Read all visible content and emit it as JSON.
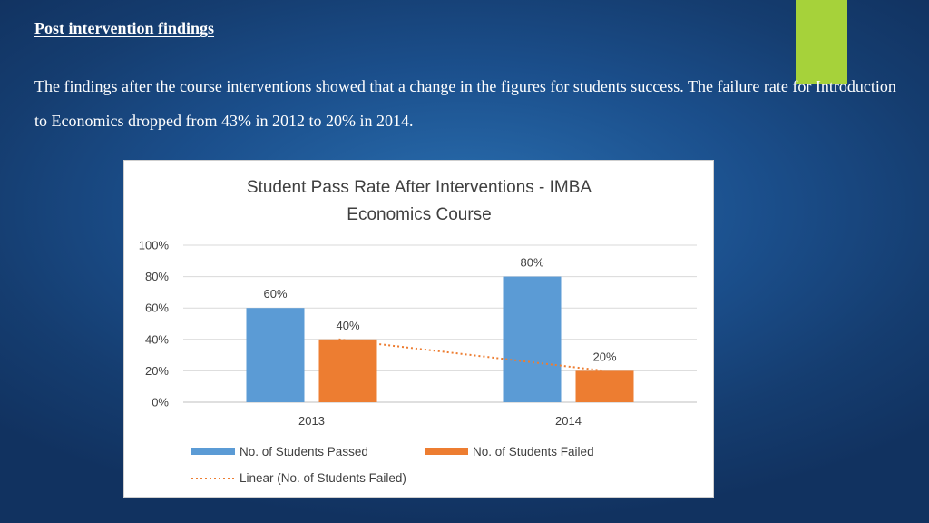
{
  "slide": {
    "title": "Post intervention findings",
    "body": "The findings after the course interventions showed that a change in the figures for students success. The failure rate for Introduction to Economics dropped from 43% in 2012 to 20% in 2014."
  },
  "colors": {
    "accent_bar": "#a6d23a",
    "passed": "#5b9bd5",
    "failed": "#ed7d31",
    "trendline": "#ed7d31"
  },
  "chart_data": {
    "type": "bar",
    "title_lines": [
      "Student Pass Rate After Interventions - IMBA",
      "Economics Course"
    ],
    "categories": [
      "2013",
      "2014"
    ],
    "series": [
      {
        "name": "No. of Students Passed",
        "values": [
          60,
          80
        ],
        "labels": [
          "60%",
          "80%"
        ]
      },
      {
        "name": "No. of Students Failed",
        "values": [
          40,
          20
        ],
        "labels": [
          "40%",
          "20%"
        ]
      }
    ],
    "trendline": {
      "name": "Linear (No. of Students Failed)",
      "series": "No. of Students Failed",
      "type": "linear",
      "style": "dotted"
    },
    "y_ticks": [
      "0%",
      "20%",
      "40%",
      "60%",
      "80%",
      "100%"
    ],
    "ylim": [
      0,
      100
    ],
    "grid": true,
    "legend_position": "bottom"
  }
}
